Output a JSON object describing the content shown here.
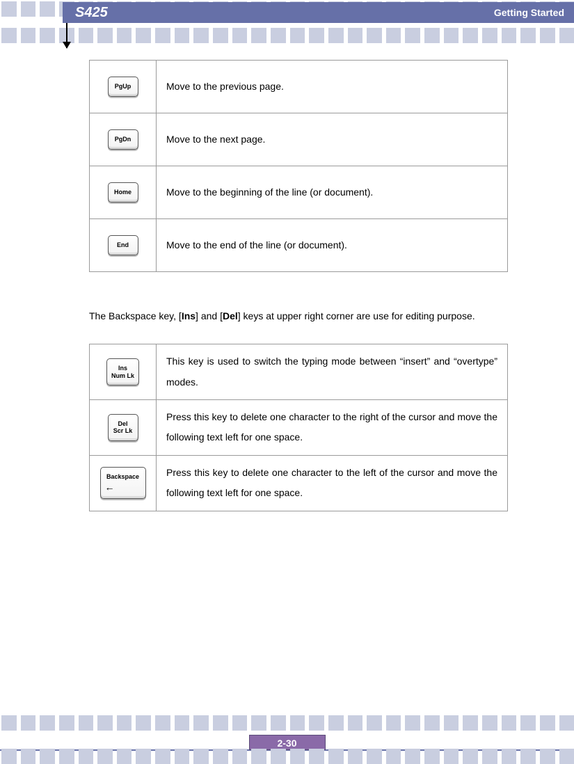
{
  "header": {
    "title": "S425",
    "section": "Getting  Started"
  },
  "table1": {
    "rows": [
      {
        "key_lines": [
          "PgUp"
        ],
        "desc": "Move to the previous page."
      },
      {
        "key_lines": [
          "PgDn"
        ],
        "desc": "Move to the next page."
      },
      {
        "key_lines": [
          "Home"
        ],
        "desc": "Move to the beginning of the line (or document)."
      },
      {
        "key_lines": [
          "End"
        ],
        "desc": "Move to the end of the line (or document)."
      }
    ]
  },
  "paragraph": {
    "pre": "The Backspace key, [",
    "bold1": "Ins",
    "mid1": "] and [",
    "bold2": "Del",
    "post": "] keys at upper right corner are use for editing purpose."
  },
  "table2": {
    "rows": [
      {
        "key_lines": [
          "Ins",
          "Num Lk"
        ],
        "wide": false,
        "desc": "This key is used to switch the typing mode between “insert” and “overtype” modes."
      },
      {
        "key_lines": [
          "Del",
          "Scr Lk"
        ],
        "wide": false,
        "desc": "Press this key to delete one character to the right of the cursor and move the following text left for one space."
      },
      {
        "key_lines": [
          "Backspace",
          "←"
        ],
        "wide": true,
        "desc": "Press this key to delete one character to the left of the cursor and move the following text left for one space."
      }
    ]
  },
  "footer": {
    "page": "2-30"
  },
  "style": {
    "square_color": "#c9cee0",
    "header_bg": "#6670a8",
    "footer_bg": "#8a6aa8"
  }
}
